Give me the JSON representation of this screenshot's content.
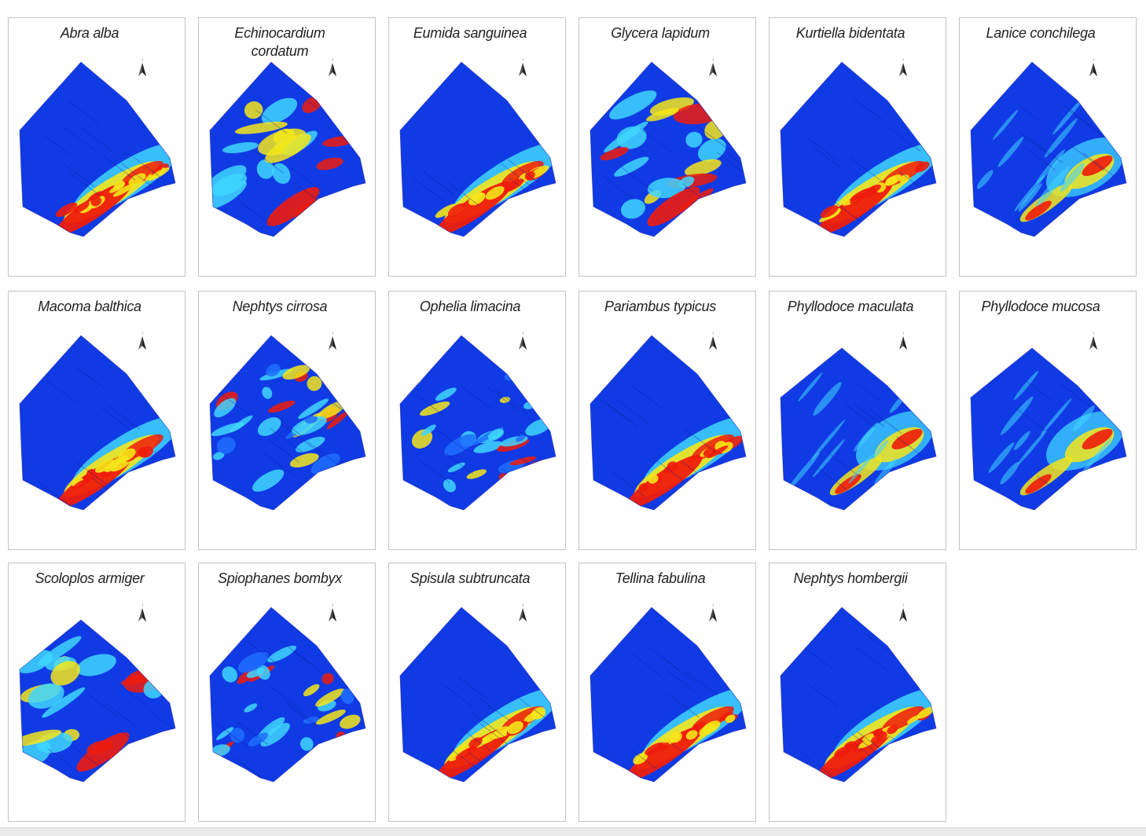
{
  "figure": {
    "panels": [
      {
        "species": "Abra alba",
        "hotspot": "south-edge"
      },
      {
        "species": "Echinocardium cordatum",
        "hotspot": "mixed"
      },
      {
        "species": "Eumida sanguinea",
        "hotspot": "south-edge"
      },
      {
        "species": "Glycera lapidum",
        "hotspot": "mixed"
      },
      {
        "species": "Kurtiella bidentata",
        "hotspot": "south-edge"
      },
      {
        "species": "Lanice conchilega",
        "hotspot": "east"
      },
      {
        "species": "Macoma balthica",
        "hotspot": "south-edge"
      },
      {
        "species": "Nephtys cirrosa",
        "hotspot": "patchy"
      },
      {
        "species": "Ophelia limacina",
        "hotspot": "patchy"
      },
      {
        "species": "Pariambus typicus",
        "hotspot": "south-edge"
      },
      {
        "species": "Phyllodoce maculata",
        "hotspot": "east"
      },
      {
        "species": "Phyllodoce mucosa",
        "hotspot": "east"
      },
      {
        "species": "Scoloplos armiger",
        "hotspot": "mixed"
      },
      {
        "species": "Spiophanes bombyx",
        "hotspot": "patchy"
      },
      {
        "species": "Spisula subtruncata",
        "hotspot": "south-edge"
      },
      {
        "species": "Tellina fabulina",
        "hotspot": "south-edge"
      },
      {
        "species": "Nephtys hombergii",
        "hotspot": "south-edge"
      }
    ],
    "colors": {
      "low": "#0a1fd6",
      "low_mid": "#1e6fff",
      "mid": "#3fd6ff",
      "mid_high": "#f5e61a",
      "high": "#ee1c0c",
      "panel_border": "#c3c3c3"
    },
    "icons": {
      "north": "north-arrow-icon"
    }
  }
}
